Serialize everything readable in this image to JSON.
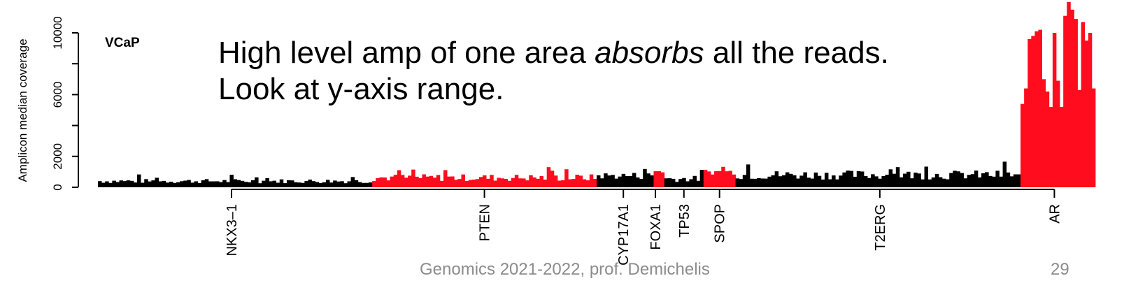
{
  "chart_data": {
    "type": "bar",
    "sample": "VCaP",
    "ylabel": "Amplicon median coverage",
    "ylim": [
      0,
      12000
    ],
    "yticks": [
      0,
      2000,
      6000,
      10000
    ],
    "yticks_minor": [
      4000,
      8000
    ],
    "n_amplicons": 280,
    "base_color": "#000000",
    "highlight_color": "#ff0d1e",
    "genes": [
      {
        "name": "NKX3–1",
        "index": 37
      },
      {
        "name": "PTEN",
        "index": 108
      },
      {
        "name": "CYP17A1",
        "index": 147
      },
      {
        "name": "FOXA1",
        "index": 156
      },
      {
        "name": "TP53",
        "index": 164
      },
      {
        "name": "SPOP",
        "index": 174
      },
      {
        "name": "T2ERG",
        "index": 219
      },
      {
        "name": "AR",
        "index": 268
      }
    ],
    "segments": [
      {
        "start": 0,
        "end": 76,
        "color": "#000000",
        "level": 400,
        "spread": 140
      },
      {
        "start": 77,
        "end": 139,
        "color": "#ff0d1e",
        "level": 620,
        "spread": 230
      },
      {
        "start": 140,
        "end": 155,
        "color": "#000000",
        "level": 750,
        "spread": 230
      },
      {
        "start": 156,
        "end": 158,
        "color": "#ff0d1e",
        "level": 1050,
        "spread": 160
      },
      {
        "start": 159,
        "end": 169,
        "color": "#000000",
        "level": 550,
        "spread": 200
      },
      {
        "start": 170,
        "end": 178,
        "color": "#ff0d1e",
        "level": 1000,
        "spread": 180
      },
      {
        "start": 179,
        "end": 258,
        "color": "#000000",
        "level": 800,
        "spread": 300
      },
      {
        "start": 259,
        "end": 279,
        "color": "#ff0d1e",
        "level": 8000,
        "spread": 2500
      }
    ],
    "ar_values": [
      5400,
      6400,
      9600,
      9800,
      10100,
      10200,
      7000,
      6200,
      5200,
      10000,
      6900,
      5200,
      11100,
      12000,
      11500,
      10900,
      6300,
      10700,
      9500,
      10000,
      6400
    ]
  },
  "annotation": {
    "line1_pre": "High level amp of one area ",
    "line1_em": "absorbs",
    "line1_post": " all the reads.",
    "line2": "Look at y-axis range."
  },
  "footer": {
    "credit": "Genomics 2021-2022, prof. Demichelis",
    "page": "29"
  }
}
